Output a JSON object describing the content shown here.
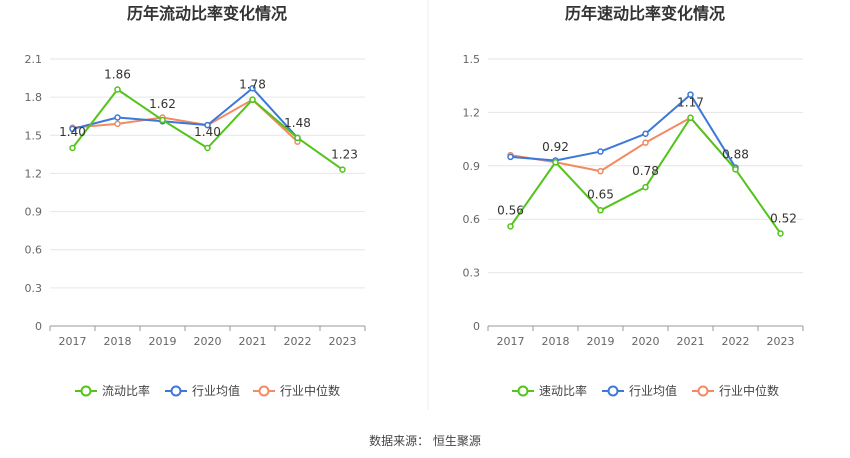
{
  "colors": {
    "company": "#52c41a",
    "avg": "#3c78d8",
    "median": "#f28a62",
    "grid": "#e6e6e6",
    "axis": "#999999"
  },
  "chart_data": [
    {
      "type": "line",
      "title": "历年流动比率变化情况",
      "categories": [
        "2017",
        "2018",
        "2019",
        "2020",
        "2021",
        "2022",
        "2023"
      ],
      "ylim": [
        0,
        2.1
      ],
      "yticks": [
        "0",
        "0.3",
        "0.6",
        "0.9",
        "1.2",
        "1.5",
        "1.8",
        "2.1"
      ],
      "series": [
        {
          "name": "流动比率",
          "values": [
            1.4,
            1.86,
            1.62,
            1.4,
            1.78,
            1.48,
            1.23
          ],
          "labels": [
            "1.40",
            "1.86",
            "1.62",
            "1.40",
            "1.78",
            "1.48",
            "1.23"
          ]
        },
        {
          "name": "行业均值",
          "values": [
            1.55,
            1.64,
            1.61,
            1.58,
            1.87,
            1.48,
            null
          ]
        },
        {
          "name": "行业中位数",
          "values": [
            1.56,
            1.59,
            1.64,
            1.58,
            1.78,
            1.45,
            null
          ]
        }
      ],
      "grid": true,
      "legend": "bottom"
    },
    {
      "type": "line",
      "title": "历年速动比率变化情况",
      "categories": [
        "2017",
        "2018",
        "2019",
        "2020",
        "2021",
        "2022",
        "2023"
      ],
      "ylim": [
        0,
        1.5
      ],
      "yticks": [
        "0",
        "0.3",
        "0.6",
        "0.9",
        "1.2",
        "1.5"
      ],
      "series": [
        {
          "name": "速动比率",
          "values": [
            0.56,
            0.92,
            0.65,
            0.78,
            1.17,
            0.88,
            0.52
          ],
          "labels": [
            "0.56",
            "0.92",
            "0.65",
            "0.78",
            "1.17",
            "0.88",
            "0.52"
          ]
        },
        {
          "name": "行业均值",
          "values": [
            0.95,
            0.93,
            0.98,
            1.08,
            1.3,
            0.89,
            null
          ]
        },
        {
          "name": "行业中位数",
          "values": [
            0.96,
            0.92,
            0.87,
            1.03,
            1.17,
            0.88,
            null
          ]
        }
      ],
      "grid": true,
      "legend": "bottom"
    }
  ],
  "footer": {
    "source": "数据来源：  恒生聚源"
  }
}
